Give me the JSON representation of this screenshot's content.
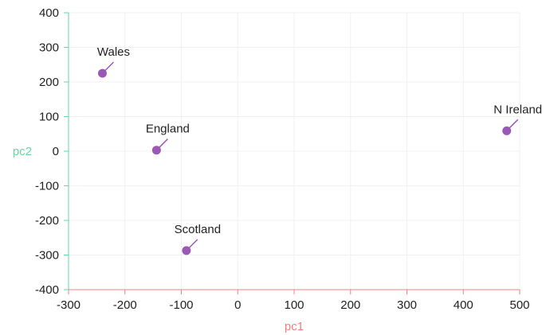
{
  "chart_data": {
    "type": "scatter",
    "title": "",
    "xlabel": "pc1",
    "ylabel": "pc2",
    "xlim": [
      -300,
      500
    ],
    "ylim": [
      -400,
      400
    ],
    "xticks": [
      "-300",
      "-200",
      "-100",
      "0",
      "100",
      "200",
      "300",
      "400",
      "500"
    ],
    "yticks": [
      "400",
      "300",
      "200",
      "100",
      "0",
      "-100",
      "-200",
      "-300",
      "-400"
    ],
    "grid": true,
    "points": [
      {
        "label": "Wales",
        "x": -240,
        "y": 225
      },
      {
        "label": "England",
        "x": -144,
        "y": 3
      },
      {
        "label": "Scotland",
        "x": -91,
        "y": -287
      },
      {
        "label": "N Ireland",
        "x": 477,
        "y": 59
      }
    ]
  },
  "colors": {
    "point": "#9b59b6",
    "x_axis": "#f08080",
    "y_axis": "#66d9a0",
    "grid": "#f0f0f0"
  }
}
